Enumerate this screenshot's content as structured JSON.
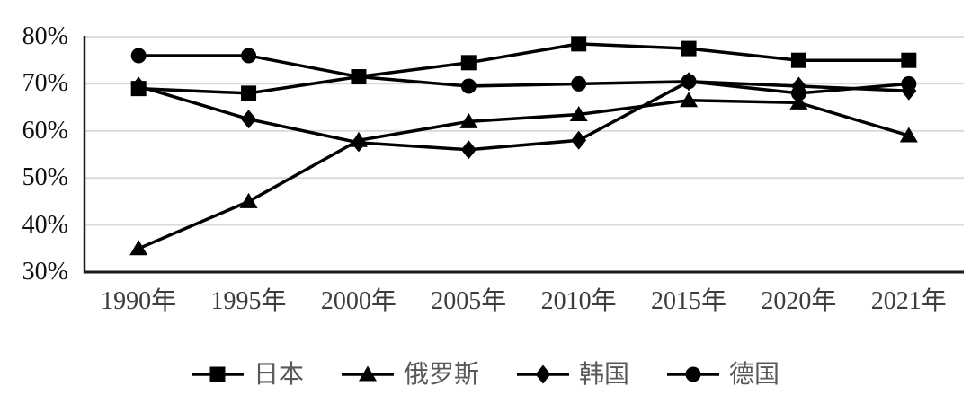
{
  "chart_data": {
    "type": "line",
    "title": "",
    "categories": [
      "1990年",
      "1995年",
      "2000年",
      "2005年",
      "2010年",
      "2015年",
      "2020年",
      "2021年"
    ],
    "series": [
      {
        "name": "日本",
        "marker": "square",
        "values": [
          69,
          68,
          71.5,
          74.5,
          78.5,
          77.5,
          75,
          75
        ]
      },
      {
        "name": "俄罗斯",
        "marker": "triangle",
        "values": [
          35,
          45,
          58,
          62,
          63.5,
          66.5,
          66,
          59
        ]
      },
      {
        "name": "韩国",
        "marker": "diamond",
        "values": [
          69.5,
          62.5,
          57.5,
          56,
          58,
          70.5,
          69.5,
          68.5
        ]
      },
      {
        "name": "德国",
        "marker": "circle",
        "values": [
          76,
          76,
          71.5,
          69.5,
          70,
          70.5,
          68,
          70
        ]
      }
    ],
    "y_axis": {
      "min": 30,
      "max": 80,
      "unit": "%",
      "ticks": [
        80,
        70,
        60,
        50,
        40,
        30
      ],
      "tick_labels": [
        "80%",
        "70%",
        "60%",
        "50%",
        "40%",
        "30%"
      ]
    },
    "grid": true,
    "legend_position": "bottom"
  },
  "colors": {
    "series": "#000000",
    "gridline": "#d9d9d9",
    "axis": "#1a1a1a",
    "y_label": "#111111",
    "x_label": "#3d3d3d",
    "legend_label": "#595959"
  }
}
